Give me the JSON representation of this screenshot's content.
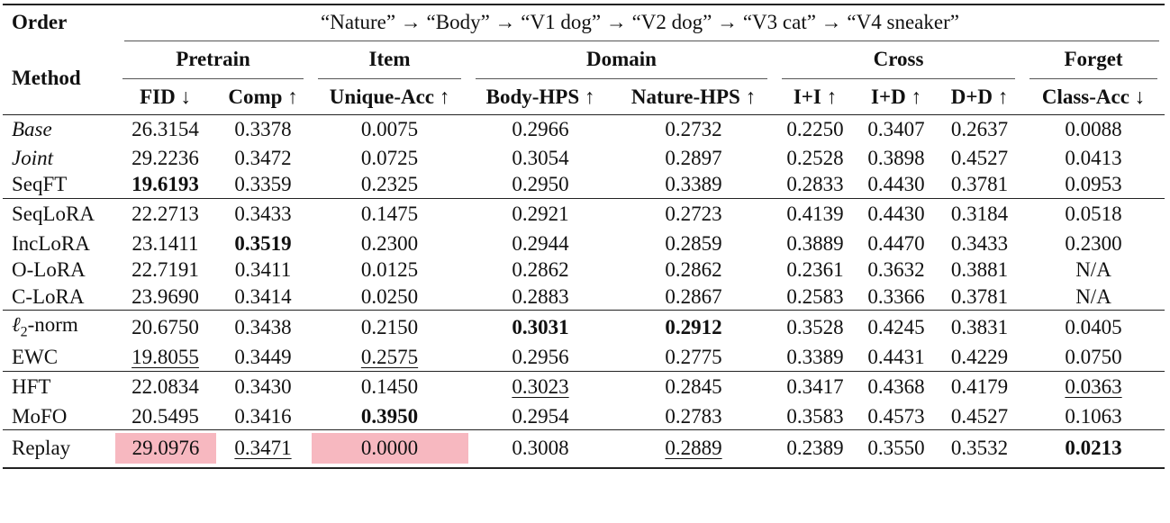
{
  "header": {
    "order_label": "Order",
    "order_sequence": "“Nature” → “Body” → “V1 dog” → “V2 dog” → “V3 cat” → “V4 sneaker”",
    "method_label": "Method",
    "groups": [
      "Pretrain",
      "Item",
      "Domain",
      "Cross",
      "Forget"
    ],
    "columns": [
      "FID ↓",
      "Comp ↑",
      "Unique-Acc ↑",
      "Body-HPS ↑",
      "Nature-HPS ↑",
      "I+I ↑",
      "I+D ↑",
      "D+D ↑",
      "Class-Acc ↓"
    ]
  },
  "rows": [
    {
      "method": "Base",
      "values": [
        "26.3154",
        "0.3378",
        "0.0075",
        "0.2966",
        "0.2732",
        "0.2250",
        "0.3407",
        "0.2637",
        "0.0088"
      ]
    },
    {
      "method": "Joint",
      "values": [
        "29.2236",
        "0.3472",
        "0.0725",
        "0.3054",
        "0.2897",
        "0.2528",
        "0.3898",
        "0.4527",
        "0.0413"
      ]
    },
    {
      "method": "SeqFT",
      "values": [
        "19.6193",
        "0.3359",
        "0.2325",
        "0.2950",
        "0.3389",
        "0.2833",
        "0.4430",
        "0.3781",
        "0.0953"
      ]
    },
    {
      "method": "SeqLoRA",
      "values": [
        "22.2713",
        "0.3433",
        "0.1475",
        "0.2921",
        "0.2723",
        "0.4139",
        "0.4430",
        "0.3184",
        "0.0518"
      ]
    },
    {
      "method": "IncLoRA",
      "values": [
        "23.1411",
        "0.3519",
        "0.2300",
        "0.2944",
        "0.2859",
        "0.3889",
        "0.4470",
        "0.3433",
        "0.2300"
      ]
    },
    {
      "method": "O-LoRA",
      "values": [
        "22.7191",
        "0.3411",
        "0.0125",
        "0.2862",
        "0.2862",
        "0.2361",
        "0.3632",
        "0.3881",
        "N/A"
      ]
    },
    {
      "method": "C-LoRA",
      "values": [
        "23.9690",
        "0.3414",
        "0.0250",
        "0.2883",
        "0.2867",
        "0.2583",
        "0.3366",
        "0.3781",
        "N/A"
      ]
    },
    {
      "method_prefix": "ℓ",
      "method_sub": "2",
      "method_suffix": "-norm",
      "values": [
        "20.6750",
        "0.3438",
        "0.2150",
        "0.3031",
        "0.2912",
        "0.3528",
        "0.4245",
        "0.3831",
        "0.0405"
      ]
    },
    {
      "method": "EWC",
      "values": [
        "19.8055",
        "0.3449",
        "0.2575",
        "0.2956",
        "0.2775",
        "0.3389",
        "0.4431",
        "0.4229",
        "0.0750"
      ]
    },
    {
      "method": "HFT",
      "values": [
        "22.0834",
        "0.3430",
        "0.1450",
        "0.3023",
        "0.2845",
        "0.3417",
        "0.4368",
        "0.4179",
        "0.0363"
      ]
    },
    {
      "method": "MoFO",
      "values": [
        "20.5495",
        "0.3416",
        "0.3950",
        "0.2954",
        "0.2783",
        "0.3583",
        "0.4573",
        "0.4527",
        "0.1063"
      ]
    },
    {
      "method": "Replay",
      "values": [
        "29.0976",
        "0.3471",
        "0.0000",
        "0.3008",
        "0.2889",
        "0.2389",
        "0.3550",
        "0.3532",
        "0.0213"
      ]
    }
  ],
  "highlight_color": "#f7b8c0"
}
